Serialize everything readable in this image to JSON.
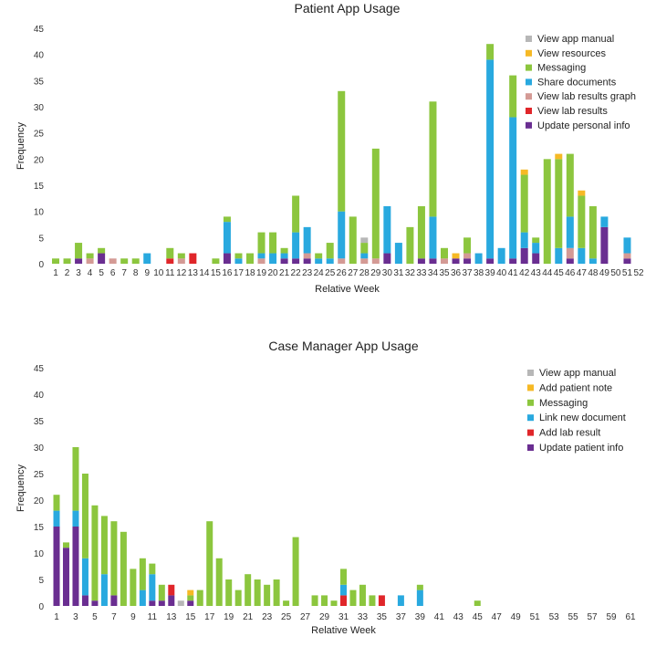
{
  "chart_data": [
    {
      "type": "stacked-bar",
      "title": "Patient App Usage",
      "xlabel": "Relative Week",
      "ylabel": "Frequency",
      "ylim": [
        0,
        45
      ],
      "yticks": [
        0,
        5,
        10,
        15,
        20,
        25,
        30,
        35,
        40,
        45
      ],
      "legend_position": "top-right",
      "legend_order": [
        "View app manual",
        "View resources",
        "Messaging",
        "Share documents",
        "View lab results graph",
        "View lab results",
        "Update personal info"
      ],
      "stack_order": [
        "Update personal info",
        "View lab results",
        "View lab results graph",
        "Share documents",
        "Messaging",
        "View resources",
        "View app manual"
      ],
      "colors": {
        "View app manual": "#b7b7b7",
        "View resources": "#f6b925",
        "Messaging": "#8cc63e",
        "Share documents": "#29a9df",
        "View lab results graph": "#d49a95",
        "View lab results": "#e0262a",
        "Update personal info": "#6a2e91"
      },
      "categories": [
        "1",
        "2",
        "3",
        "4",
        "5",
        "6",
        "7",
        "8",
        "9",
        "10",
        "11",
        "12",
        "13",
        "14",
        "15",
        "16",
        "17",
        "18",
        "19",
        "20",
        "21",
        "22",
        "23",
        "24",
        "25",
        "26",
        "27",
        "28",
        "29",
        "30",
        "31",
        "32",
        "33",
        "34",
        "35",
        "36",
        "37",
        "38",
        "39",
        "40",
        "41",
        "42",
        "43",
        "44",
        "45",
        "46",
        "47",
        "48",
        "49",
        "50",
        "51",
        "52"
      ],
      "series": [
        {
          "name": "Update personal info",
          "values": [
            0,
            0,
            1,
            0,
            2,
            0,
            0,
            0,
            0,
            0,
            0,
            0,
            0,
            0,
            0,
            2,
            0,
            0,
            0,
            0,
            1,
            1,
            1,
            0,
            0,
            0,
            0,
            0,
            0,
            2,
            0,
            0,
            1,
            1,
            0,
            1,
            1,
            0,
            1,
            0,
            1,
            3,
            2,
            0,
            0,
            1,
            0,
            0,
            7,
            0,
            1,
            0
          ]
        },
        {
          "name": "View lab results",
          "values": [
            0,
            0,
            0,
            0,
            0,
            0,
            0,
            0,
            0,
            0,
            1,
            0,
            2,
            0,
            0,
            0,
            0,
            0,
            0,
            0,
            0,
            0,
            0,
            0,
            0,
            0,
            0,
            0,
            0,
            0,
            0,
            0,
            0,
            0,
            0,
            0,
            0,
            0,
            0,
            0,
            0,
            0,
            0,
            0,
            0,
            0,
            0,
            0,
            0,
            0,
            0,
            0
          ]
        },
        {
          "name": "View lab results graph",
          "values": [
            0,
            0,
            0,
            1,
            0,
            1,
            0,
            0,
            0,
            0,
            0,
            1,
            0,
            0,
            0,
            0,
            0,
            0,
            1,
            0,
            0,
            0,
            1,
            0,
            0,
            1,
            0,
            1,
            1,
            0,
            0,
            0,
            0,
            0,
            1,
            0,
            1,
            0,
            0,
            0,
            0,
            0,
            0,
            0,
            0,
            2,
            0,
            0,
            0,
            0,
            1,
            0
          ]
        },
        {
          "name": "Share documents",
          "values": [
            0,
            0,
            0,
            0,
            0,
            0,
            0,
            0,
            2,
            0,
            0,
            0,
            0,
            0,
            0,
            6,
            1,
            0,
            1,
            2,
            1,
            5,
            5,
            1,
            1,
            9,
            0,
            1,
            0,
            9,
            4,
            0,
            0,
            8,
            0,
            0,
            0,
            2,
            38,
            3,
            27,
            3,
            2,
            0,
            3,
            6,
            3,
            1,
            2,
            0,
            3,
            0
          ]
        },
        {
          "name": "Messaging",
          "values": [
            1,
            1,
            3,
            1,
            1,
            0,
            1,
            1,
            0,
            0,
            2,
            1,
            0,
            0,
            1,
            1,
            1,
            2,
            4,
            4,
            1,
            7,
            0,
            1,
            3,
            23,
            9,
            2,
            21,
            0,
            0,
            7,
            10,
            22,
            2,
            0,
            3,
            0,
            3,
            0,
            8,
            11,
            1,
            20,
            17,
            12,
            10,
            10,
            0,
            0,
            0,
            0
          ]
        },
        {
          "name": "View resources",
          "values": [
            0,
            0,
            0,
            0,
            0,
            0,
            0,
            0,
            0,
            0,
            0,
            0,
            0,
            0,
            0,
            0,
            0,
            0,
            0,
            0,
            0,
            0,
            0,
            0,
            0,
            0,
            0,
            0,
            0,
            0,
            0,
            0,
            0,
            0,
            0,
            1,
            0,
            0,
            0,
            0,
            0,
            1,
            0,
            0,
            1,
            0,
            1,
            0,
            0,
            0,
            0,
            0
          ]
        },
        {
          "name": "View app manual",
          "values": [
            0,
            0,
            0,
            0,
            0,
            0,
            0,
            0,
            0,
            0,
            0,
            0,
            0,
            0,
            0,
            0,
            0,
            0,
            0,
            0,
            0,
            0,
            0,
            0,
            0,
            0,
            0,
            1,
            0,
            0,
            0,
            0,
            0,
            0,
            0,
            0,
            0,
            0,
            0,
            0,
            0,
            0,
            0,
            0,
            0,
            0,
            0,
            0,
            0,
            0,
            0,
            0
          ]
        }
      ]
    },
    {
      "type": "stacked-bar",
      "title": "Case Manager App Usage",
      "xlabel": "Relative Week",
      "ylabel": "Frequency",
      "ylim": [
        0,
        45
      ],
      "yticks": [
        0,
        5,
        10,
        15,
        20,
        25,
        30,
        35,
        40,
        45
      ],
      "legend_position": "top-right",
      "legend_order": [
        "View app manual",
        "Add patient note",
        "Messaging",
        "Link new document",
        "Add lab result",
        "Update patient info"
      ],
      "stack_order": [
        "Update patient info",
        "Add lab result",
        "Link new document",
        "Messaging",
        "Add patient note",
        "View app manual"
      ],
      "colors": {
        "View app manual": "#b7b7b7",
        "Add patient note": "#f6b925",
        "Messaging": "#8cc63e",
        "Link new document": "#29a9df",
        "Add lab result": "#e0262a",
        "Update patient info": "#6a2e91"
      },
      "categories": [
        "1",
        "2",
        "3",
        "4",
        "5",
        "6",
        "7",
        "8",
        "9",
        "10",
        "11",
        "12",
        "13",
        "14",
        "15",
        "16",
        "17",
        "18",
        "19",
        "20",
        "21",
        "22",
        "23",
        "24",
        "25",
        "26",
        "27",
        "28",
        "29",
        "30",
        "31",
        "32",
        "33",
        "34",
        "35",
        "36",
        "37",
        "38",
        "39",
        "40",
        "41",
        "42",
        "43",
        "44",
        "45",
        "46",
        "47",
        "48",
        "49",
        "50",
        "51",
        "52",
        "53",
        "54",
        "55",
        "56",
        "57",
        "58",
        "59",
        "60",
        "61"
      ],
      "xtick_labels": [
        "1",
        "3",
        "5",
        "7",
        "9",
        "11",
        "13",
        "15",
        "17",
        "19",
        "21",
        "23",
        "25",
        "27",
        "29",
        "31",
        "33",
        "35",
        "37",
        "39",
        "41",
        "43",
        "45",
        "47",
        "49",
        "51",
        "53",
        "55",
        "57",
        "59",
        "61"
      ],
      "series": [
        {
          "name": "Update patient info",
          "values": [
            15,
            11,
            15,
            2,
            1,
            0,
            2,
            0,
            0,
            0,
            1,
            1,
            2,
            0,
            1,
            0,
            0,
            0,
            0,
            0,
            0,
            0,
            0,
            0,
            0,
            0,
            0,
            0,
            0,
            0,
            0,
            0,
            0,
            0,
            0,
            0,
            0,
            0,
            0,
            0,
            0,
            0,
            0,
            0,
            0,
            0,
            0,
            0,
            0,
            0,
            0,
            0,
            0,
            0,
            0,
            0,
            0,
            0,
            0,
            0,
            0
          ]
        },
        {
          "name": "Add lab result",
          "values": [
            0,
            0,
            0,
            0,
            0,
            0,
            0,
            0,
            0,
            0,
            0,
            0,
            2,
            0,
            0,
            0,
            0,
            0,
            0,
            0,
            0,
            0,
            0,
            0,
            0,
            0,
            0,
            0,
            0,
            0,
            2,
            0,
            0,
            0,
            2,
            0,
            0,
            0,
            0,
            0,
            0,
            0,
            0,
            0,
            0,
            0,
            0,
            0,
            0,
            0,
            0,
            0,
            0,
            0,
            0,
            0,
            0,
            0,
            0,
            0,
            0
          ]
        },
        {
          "name": "Link new document",
          "values": [
            3,
            0,
            3,
            7,
            0,
            6,
            0,
            0,
            0,
            3,
            5,
            0,
            0,
            0,
            0,
            0,
            0,
            0,
            0,
            0,
            0,
            0,
            0,
            0,
            0,
            0,
            0,
            0,
            0,
            0,
            2,
            0,
            0,
            0,
            0,
            0,
            2,
            0,
            3,
            0,
            0,
            0,
            0,
            0,
            0,
            0,
            0,
            0,
            0,
            0,
            0,
            0,
            0,
            0,
            0,
            0,
            0,
            0,
            0,
            0,
            0
          ]
        },
        {
          "name": "Messaging",
          "values": [
            3,
            1,
            12,
            16,
            18,
            11,
            14,
            14,
            7,
            6,
            2,
            3,
            0,
            0,
            1,
            3,
            16,
            9,
            5,
            3,
            6,
            5,
            4,
            5,
            1,
            13,
            0,
            2,
            2,
            1,
            3,
            3,
            4,
            2,
            0,
            0,
            0,
            0,
            1,
            0,
            0,
            0,
            0,
            0,
            1,
            0,
            0,
            0,
            0,
            0,
            0,
            0,
            0,
            0,
            0,
            0,
            0,
            0,
            0,
            0,
            0
          ]
        },
        {
          "name": "Add patient note",
          "values": [
            0,
            0,
            0,
            0,
            0,
            0,
            0,
            0,
            0,
            0,
            0,
            0,
            0,
            0,
            1,
            0,
            0,
            0,
            0,
            0,
            0,
            0,
            0,
            0,
            0,
            0,
            0,
            0,
            0,
            0,
            0,
            0,
            0,
            0,
            0,
            0,
            0,
            0,
            0,
            0,
            0,
            0,
            0,
            0,
            0,
            0,
            0,
            0,
            0,
            0,
            0,
            0,
            0,
            0,
            0,
            0,
            0,
            0,
            0,
            0,
            0
          ]
        },
        {
          "name": "View app manual",
          "values": [
            0,
            0,
            0,
            0,
            0,
            0,
            0,
            0,
            0,
            0,
            0,
            0,
            0,
            1,
            0,
            0,
            0,
            0,
            0,
            0,
            0,
            0,
            0,
            0,
            0,
            0,
            0,
            0,
            0,
            0,
            0,
            0,
            0,
            0,
            0,
            0,
            0,
            0,
            0,
            0,
            0,
            0,
            0,
            0,
            0,
            0,
            0,
            0,
            0,
            0,
            0,
            0,
            0,
            0,
            0,
            0,
            0,
            0,
            0,
            0,
            0
          ]
        }
      ]
    }
  ]
}
